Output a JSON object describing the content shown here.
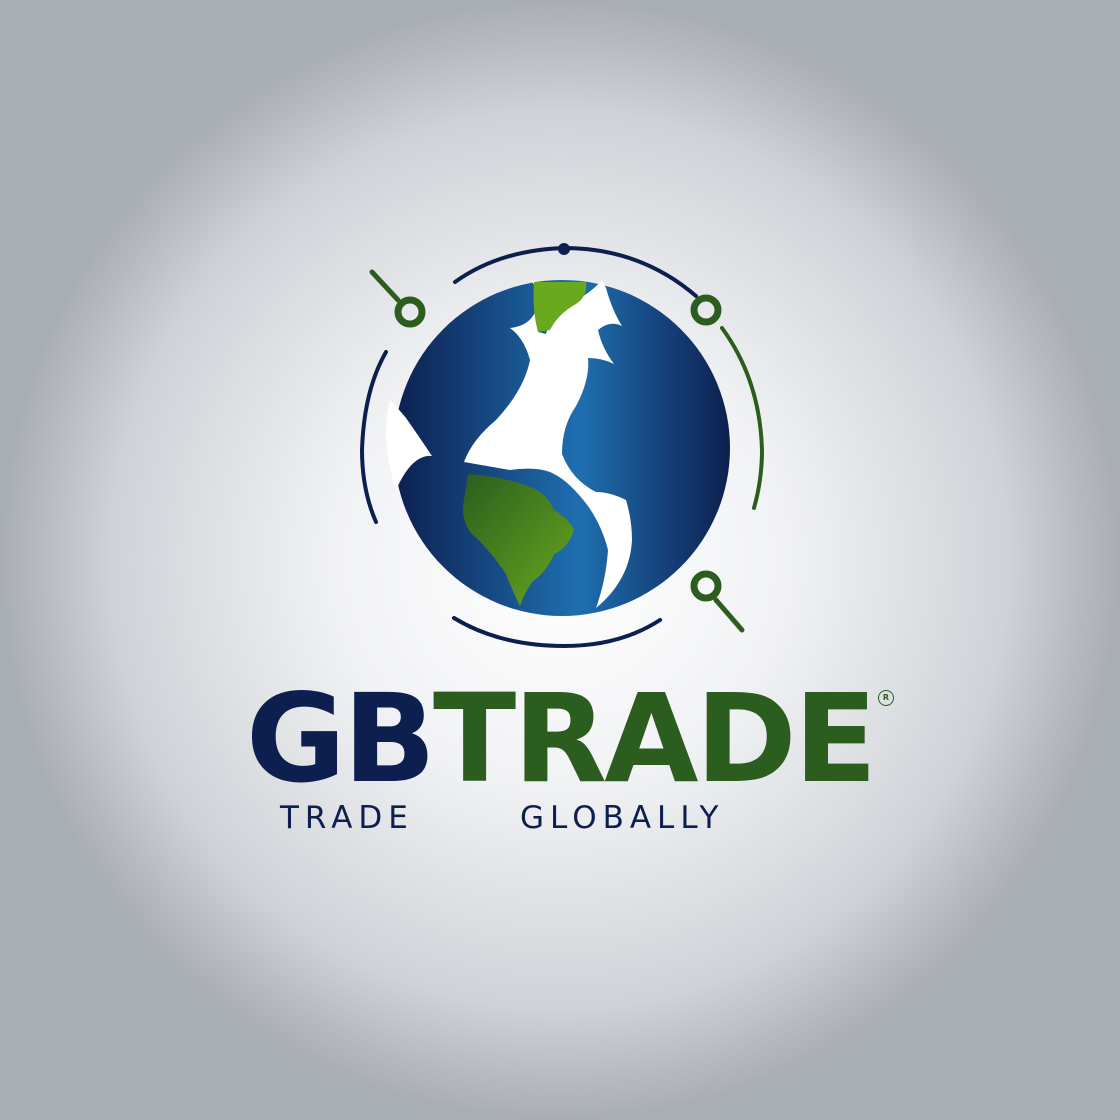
{
  "logo": {
    "brand_part_a": "GB",
    "brand_part_b": "TRADE",
    "registered_mark": "R",
    "tagline_word_1": "TRADE",
    "tagline_word_2": "GLOBALLY",
    "icon": "globe-with-network-nodes-icon"
  },
  "colors": {
    "navy": "#0d1f4f",
    "green": "#2a5d1e",
    "ocean_blue": "#1f6fb0",
    "land_green": "#5a9a1c",
    "background": "#f1f2f4"
  }
}
